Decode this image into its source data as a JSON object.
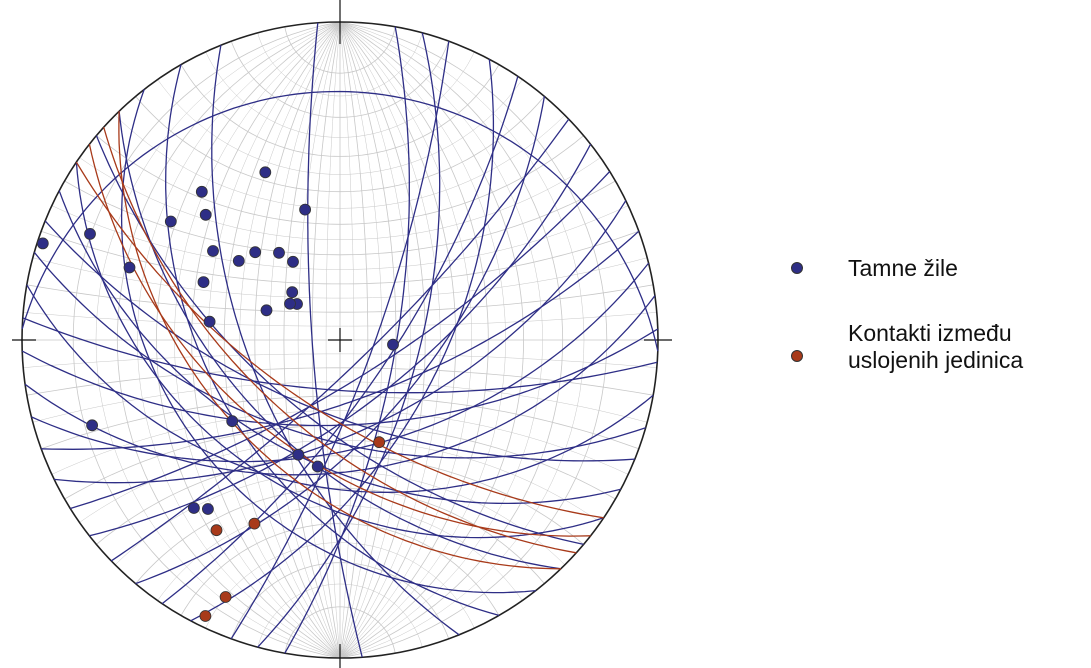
{
  "colors": {
    "background": "#ffffff",
    "grid": "#c8c8c8",
    "primitive": "#222222",
    "tamne_zile": "#2e2e86",
    "kontakti": "#a83a1a"
  },
  "stereonet": {
    "projection": "equal-angle",
    "grid": true,
    "great_circles": {
      "tamne_zile": [
        {
          "strike": 10,
          "dip": 70
        },
        {
          "strike": 15,
          "dip": 62
        },
        {
          "strike": 20,
          "dip": 78
        },
        {
          "strike": 28,
          "dip": 55
        },
        {
          "strike": 34,
          "dip": 72
        },
        {
          "strike": 40,
          "dip": 60
        },
        {
          "strike": 46,
          "dip": 80
        },
        {
          "strike": 52,
          "dip": 66
        },
        {
          "strike": 58,
          "dip": 75
        },
        {
          "strike": 64,
          "dip": 58
        },
        {
          "strike": 70,
          "dip": 68
        },
        {
          "strike": 76,
          "dip": 52
        },
        {
          "strike": 82,
          "dip": 45
        },
        {
          "strike": 88,
          "dip": 60
        },
        {
          "strike": 94,
          "dip": 72
        },
        {
          "strike": 100,
          "dip": 40
        },
        {
          "strike": 106,
          "dip": 55
        },
        {
          "strike": 112,
          "dip": 64
        },
        {
          "strike": 118,
          "dip": 48
        },
        {
          "strike": 124,
          "dip": 38
        },
        {
          "strike": 130,
          "dip": 62
        },
        {
          "strike": 136,
          "dip": 52
        },
        {
          "strike": 142,
          "dip": 32
        },
        {
          "strike": 150,
          "dip": 45
        },
        {
          "strike": 158,
          "dip": 58
        },
        {
          "strike": 176,
          "dip": 80
        },
        {
          "strike": 272,
          "dip": 14
        }
      ],
      "kontakti": [
        {
          "strike": 128,
          "dip": 50
        },
        {
          "strike": 132,
          "dip": 58
        },
        {
          "strike": 136,
          "dip": 44
        },
        {
          "strike": 124,
          "dip": 65
        }
      ]
    },
    "poles": {
      "tamne_zile": [
        {
          "trend": 336,
          "plunge": 30
        },
        {
          "trend": 317,
          "plunge": 25
        },
        {
          "trend": 313,
          "plunge": 30
        },
        {
          "trend": 305,
          "plunge": 24
        },
        {
          "trend": 345,
          "plunge": 44
        },
        {
          "trend": 293,
          "plunge": 9
        },
        {
          "trend": 289,
          "plunge": 20
        },
        {
          "trend": 316,
          "plunge": 48
        },
        {
          "trend": 305,
          "plunge": 38
        },
        {
          "trend": 293,
          "plunge": 40
        },
        {
          "trend": 278,
          "plunge": 45
        },
        {
          "trend": 325,
          "plunge": 53
        },
        {
          "trend": 308,
          "plunge": 46
        },
        {
          "trend": 329,
          "plunge": 58
        },
        {
          "trend": 292,
          "plunge": 62
        },
        {
          "trend": 310,
          "plunge": 70
        },
        {
          "trend": 315,
          "plunge": 66
        },
        {
          "trend": 288,
          "plunge": 1
        },
        {
          "trend": 306,
          "plunge": 68
        },
        {
          "trend": 95,
          "plunge": 71
        },
        {
          "trend": 233,
          "plunge": 44
        },
        {
          "trend": 251,
          "plunge": 11
        },
        {
          "trend": 221,
          "plunge": 20
        },
        {
          "trend": 218,
          "plunge": 22
        },
        {
          "trend": 200,
          "plunge": 48
        },
        {
          "trend": 190,
          "plunge": 46
        }
      ],
      "kontakti": [
        {
          "trend": 159,
          "plunge": 52
        },
        {
          "trend": 213,
          "plunge": 19
        },
        {
          "trend": 205,
          "plunge": 25
        },
        {
          "trend": 204,
          "plunge": 7
        },
        {
          "trend": 206,
          "plunge": 2
        }
      ]
    }
  },
  "legend": {
    "placement": "right",
    "items": [
      {
        "label": "Tamne žile",
        "color": "#2e2e86"
      },
      {
        "label": "Kontakti između\nuslojenih jedinica",
        "color": "#a83a1a"
      }
    ]
  }
}
